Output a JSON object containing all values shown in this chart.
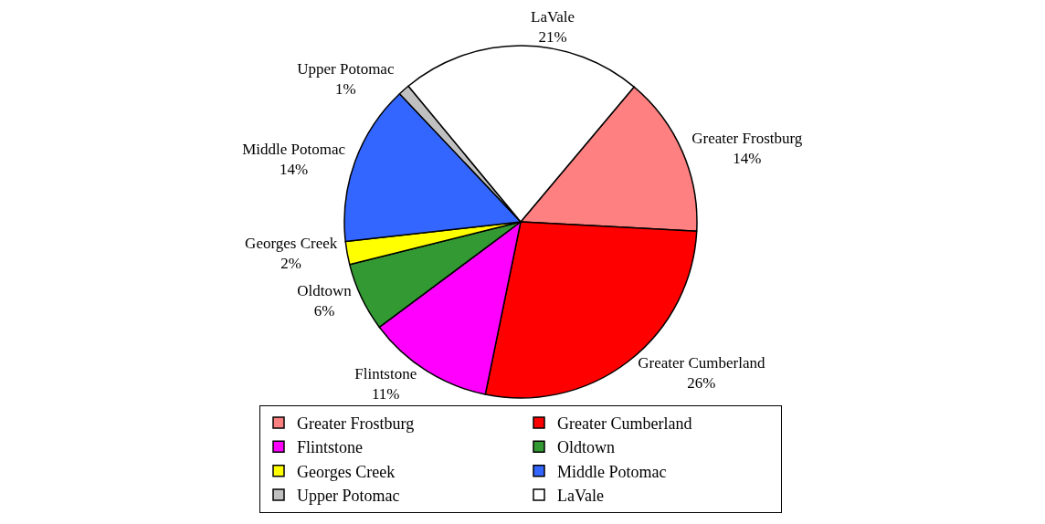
{
  "chart_data": {
    "type": "pie",
    "categories": [
      "Greater Frostburg",
      "Greater Cumberland",
      "Flintstone",
      "Oldtown",
      "Georges Creek",
      "Middle Potomac",
      "Upper Potomac",
      "LaVale"
    ],
    "values": [
      14,
      26,
      11,
      6,
      2,
      14,
      1,
      21
    ],
    "value_labels": [
      "14%",
      "26%",
      "11%",
      "6%",
      "2%",
      "14%",
      "1%",
      "21%"
    ],
    "colors": [
      "#ff8080",
      "#ff0000",
      "#ff00ff",
      "#339933",
      "#ffff00",
      "#3366ff",
      "#c0c0c0",
      "#ffffff"
    ],
    "legend": "bottom"
  }
}
